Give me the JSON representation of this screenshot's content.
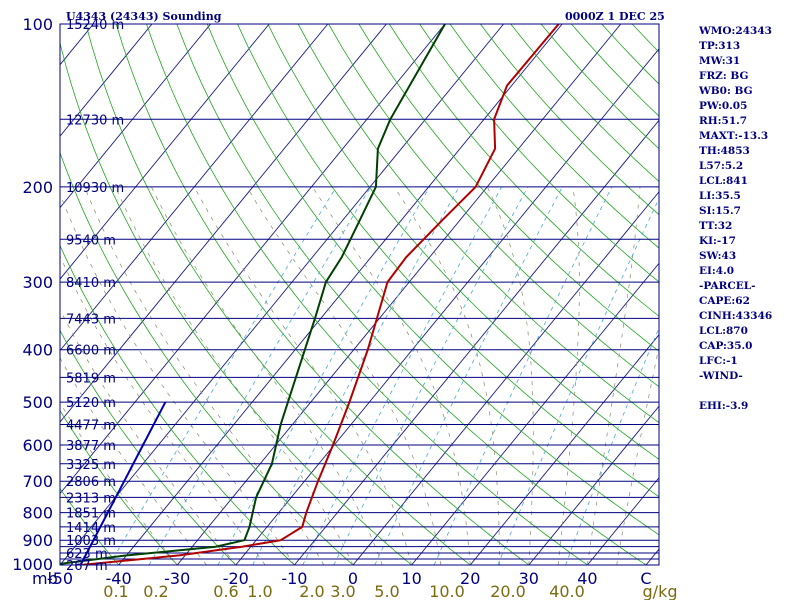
{
  "header": {
    "station": "U4343 (24343) Sounding",
    "datetime": "0000Z  1 DEC 25"
  },
  "indices": [
    "WMO:24343",
    "TP:313",
    "MW:31",
    "FRZ: BG",
    "WB0: BG",
    "PW:0.05",
    "RH:51.7",
    "MAXT:-13.3",
    "TH:4853",
    "L57:5.2",
    "LCL:841",
    "LI:35.5",
    "SI:15.7",
    "TT:32",
    "KI:-17",
    "SW:43",
    "EI:4.0",
    "-PARCEL-",
    "CAPE:62",
    "CINH:43346",
    "LCL:870",
    "CAP:35.0",
    "LFC:-1",
    "-WIND-",
    "",
    "EHI:-3.9"
  ],
  "chart_data": {
    "type": "skew-t",
    "title": "U4343 (24343) Sounding",
    "pressure_unit_label": "mb",
    "pressure_ticks": [
      100,
      200,
      300,
      400,
      500,
      600,
      700,
      800,
      900,
      1000
    ],
    "pressure_range": [
      1000,
      100
    ],
    "isobars": [
      100,
      150,
      200,
      250,
      300,
      350,
      400,
      450,
      500,
      550,
      600,
      650,
      700,
      750,
      800,
      850,
      900,
      925,
      950,
      975,
      1000
    ],
    "temperature_ticks": [
      "-50",
      "-40",
      "-30",
      "-20",
      "-10",
      "0",
      "10",
      "20",
      "30",
      "40",
      "C"
    ],
    "temperature_values": [
      -50,
      -40,
      -30,
      -20,
      -10,
      0,
      10,
      20,
      30,
      40,
      50
    ],
    "mixing_ratio_ticks": [
      "0.1",
      "0.2",
      "0.6",
      "1.0",
      "2.0",
      "3.0",
      "5.0",
      "10.0",
      "20.0",
      "40.0",
      "g/kg"
    ],
    "mixing_ratio_values": [
      0.1,
      0.2,
      0.6,
      1.0,
      2.0,
      3.0,
      5.0,
      10.0,
      20.0,
      40.0,
      null
    ],
    "height_labels": [
      {
        "p": 100,
        "label": "15240 m"
      },
      {
        "p": 150,
        "label": "12730 m"
      },
      {
        "p": 200,
        "label": "10930 m"
      },
      {
        "p": 250,
        "label": "9540 m"
      },
      {
        "p": 300,
        "label": "8410 m"
      },
      {
        "p": 350,
        "label": "7443 m"
      },
      {
        "p": 400,
        "label": "6600 m"
      },
      {
        "p": 450,
        "label": "5819 m"
      },
      {
        "p": 500,
        "label": "5120 m"
      },
      {
        "p": 550,
        "label": "4477 m"
      },
      {
        "p": 600,
        "label": "3877 m"
      },
      {
        "p": 650,
        "label": "3325 m"
      },
      {
        "p": 700,
        "label": "2806 m"
      },
      {
        "p": 750,
        "label": "2313 m"
      },
      {
        "p": 800,
        "label": "1851 m"
      },
      {
        "p": 850,
        "label": "1414 m"
      },
      {
        "p": 900,
        "label": "1003 m"
      },
      {
        "p": 950,
        "label": "623 m"
      },
      {
        "p": 1000,
        "label": "267 m"
      }
    ],
    "series": [
      {
        "kind": "temperature",
        "color": "#b00000",
        "points": [
          {
            "p": 1000,
            "t": -46.5
          },
          {
            "p": 960,
            "t": -31.0
          },
          {
            "p": 925,
            "t": -21.5
          },
          {
            "p": 900,
            "t": -15.8
          },
          {
            "p": 850,
            "t": -14.0
          },
          {
            "p": 800,
            "t": -15.3
          },
          {
            "p": 700,
            "t": -17.7
          },
          {
            "p": 600,
            "t": -20.2
          },
          {
            "p": 500,
            "t": -23.4
          },
          {
            "p": 400,
            "t": -27.6
          },
          {
            "p": 300,
            "t": -33.7
          },
          {
            "p": 270,
            "t": -34.0
          },
          {
            "p": 230,
            "t": -33.0
          },
          {
            "p": 200,
            "t": -32.0
          },
          {
            "p": 170,
            "t": -34.0
          },
          {
            "p": 150,
            "t": -38.3
          },
          {
            "p": 130,
            "t": -40.8
          },
          {
            "p": 100,
            "t": -40.6
          }
        ]
      },
      {
        "kind": "dewpoint",
        "color": "#004000",
        "points": [
          {
            "p": 1000,
            "t": -51.5
          },
          {
            "p": 960,
            "t": -40.0
          },
          {
            "p": 925,
            "t": -26.0
          },
          {
            "p": 900,
            "t": -22.0
          },
          {
            "p": 850,
            "t": -23.0
          },
          {
            "p": 750,
            "t": -26.0
          },
          {
            "p": 650,
            "t": -28.0
          },
          {
            "p": 550,
            "t": -32.0
          },
          {
            "p": 450,
            "t": -36.0
          },
          {
            "p": 350,
            "t": -41.0
          },
          {
            "p": 300,
            "t": -44.2
          },
          {
            "p": 270,
            "t": -45.0
          },
          {
            "p": 250,
            "t": -46.0
          },
          {
            "p": 200,
            "t": -49.0
          },
          {
            "p": 170,
            "t": -54.0
          },
          {
            "p": 150,
            "t": -56.0
          },
          {
            "p": 100,
            "t": -60.0
          }
        ]
      },
      {
        "kind": "parcel",
        "color": "#0000b0",
        "points": [
          {
            "p": 1000,
            "t": -46.5
          },
          {
            "p": 500,
            "t": -54.8
          }
        ]
      }
    ],
    "grid": true
  }
}
